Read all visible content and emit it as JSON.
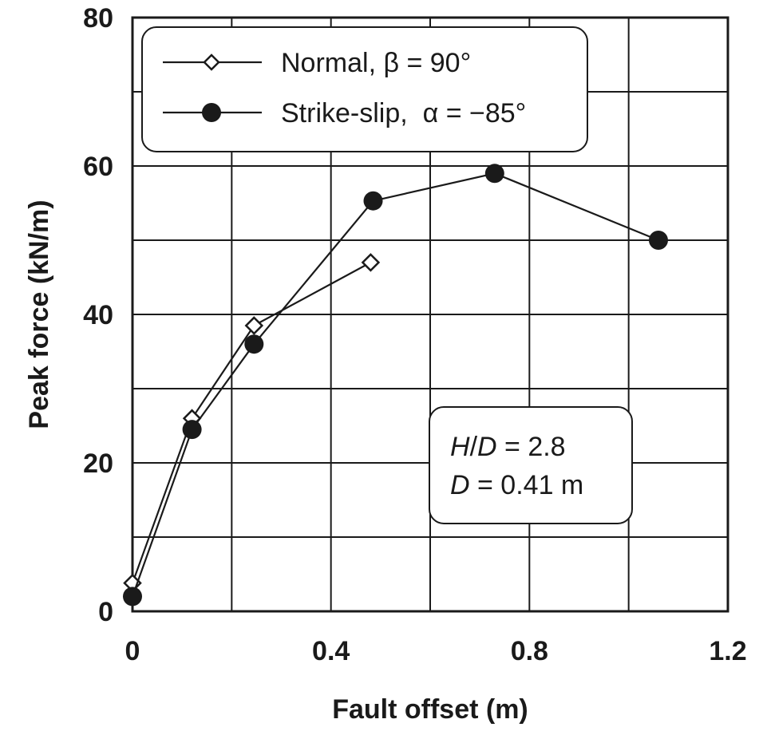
{
  "chart_data": {
    "type": "line",
    "xlabel": "Fault offset (m)",
    "ylabel": "Peak force (kN/m)",
    "xlim": [
      0,
      1.2
    ],
    "ylim": [
      0,
      80
    ],
    "x_ticks": [
      "0",
      "0.4",
      "0.8",
      "1.2"
    ],
    "x_tick_values": [
      0,
      0.4,
      0.8,
      1.2
    ],
    "y_ticks": [
      "0",
      "20",
      "40",
      "60",
      "80"
    ],
    "y_tick_values": [
      0,
      20,
      40,
      60,
      80
    ],
    "grid": true,
    "grid_x_step": 0.2,
    "grid_y_step": 10,
    "legend_position": "top-left",
    "series": [
      {
        "name": "Normal, β = 90°",
        "marker": "diamond-open",
        "points": [
          [
            0.0,
            3.8
          ],
          [
            0.12,
            26.0
          ],
          [
            0.245,
            38.5
          ],
          [
            0.48,
            47.0
          ]
        ]
      },
      {
        "name": "Strike-slip,  α = −85°",
        "marker": "circle-filled",
        "points": [
          [
            0.0,
            2.0
          ],
          [
            0.12,
            24.5
          ],
          [
            0.245,
            36.0
          ],
          [
            0.485,
            55.3
          ],
          [
            0.73,
            59.0
          ],
          [
            1.06,
            50.0
          ]
        ]
      }
    ],
    "annotations": [
      "H/D = 2.8",
      "D = 0.41 m"
    ]
  }
}
